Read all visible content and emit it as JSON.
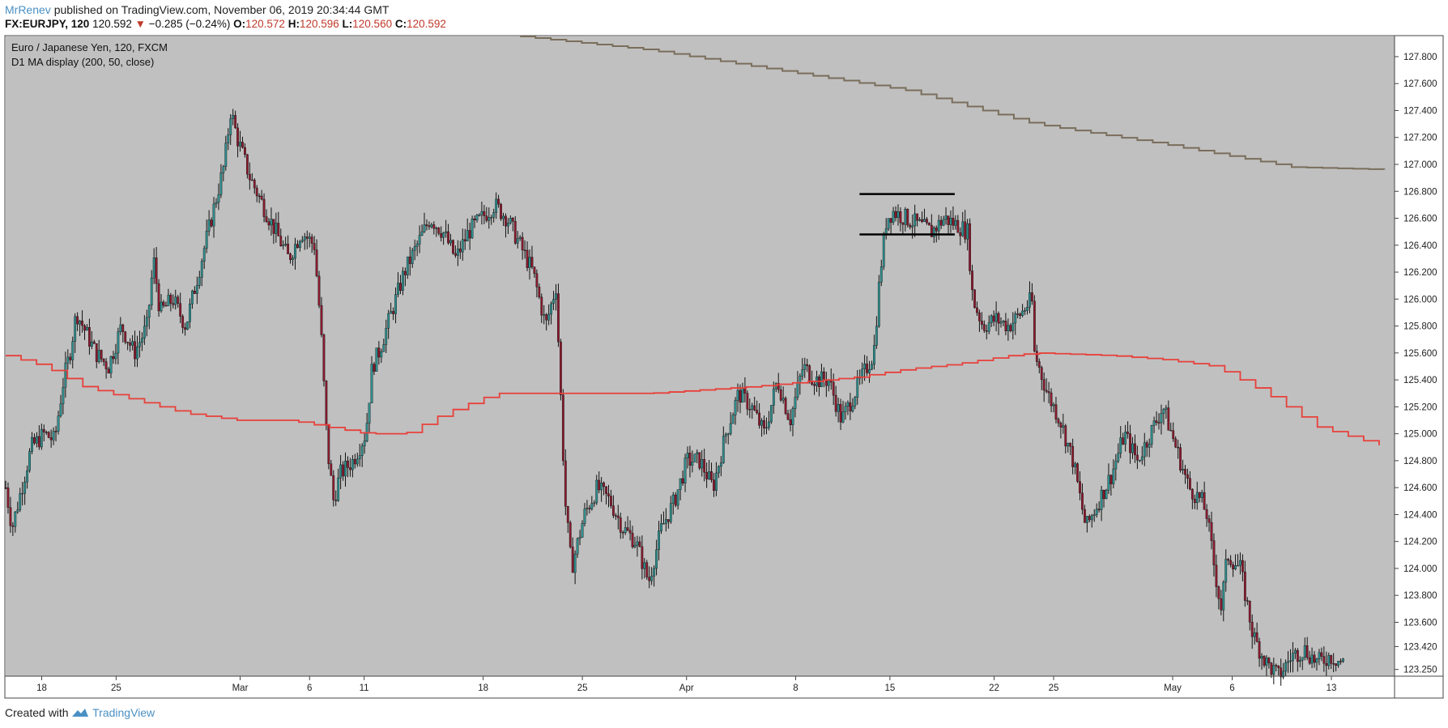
{
  "header": {
    "author": "MrRenev",
    "published": "published on TradingView.com, November 06, 2019 20:34:44 GMT",
    "symbol": "FX:EURJPY, 120",
    "last": "120.592",
    "down_arrow": "▼",
    "change": "−0.285 (−0.24%)",
    "o_label": "O:",
    "o_value": "120.572",
    "h_label": "H:",
    "h_value": "120.596",
    "l_label": "L:",
    "l_value": "120.560",
    "c_label": "C:",
    "c_value": "120.592"
  },
  "legend": {
    "title": "Euro / Japanese Yen, 120, FXCM",
    "indicator": "D1 MA display (200, 50, close)"
  },
  "footer": {
    "created_with": "Created with",
    "brand": "TradingView"
  },
  "colors": {
    "plot_bg": "#c0c0c0",
    "candle_up": "#2f8f8f",
    "candle_down": "#8b1a2e",
    "wick": "#111111",
    "ma200": "#7a6e5c",
    "ma50": "#e8403a",
    "brand": "#4a90c4",
    "down": "#c0392b"
  },
  "chart_data": {
    "type": "candlestick",
    "title": "Euro / Japanese Yen, 120, FXCM",
    "y_range": [
      123.2,
      127.95
    ],
    "y_ticks": [
      "127.800",
      "127.600",
      "127.400",
      "127.200",
      "127.000",
      "126.800",
      "126.600",
      "126.400",
      "126.200",
      "126.000",
      "125.800",
      "125.600",
      "125.400",
      "125.200",
      "125.000",
      "124.800",
      "124.600",
      "124.400",
      "124.200",
      "124.000",
      "123.800",
      "123.600",
      "123.420",
      "123.250"
    ],
    "x_ticks": [
      "18",
      "25",
      "Mar",
      "6",
      "11",
      "18",
      "25",
      "Apr",
      "8",
      "15",
      "22",
      "25",
      "May",
      "6",
      "13"
    ],
    "price_path": [
      [
        0,
        124.6
      ],
      [
        0.5,
        124.3
      ],
      [
        2,
        124.9
      ],
      [
        3,
        125.0
      ],
      [
        3.8,
        124.95
      ],
      [
        4.5,
        125.4
      ],
      [
        5,
        125.6
      ],
      [
        5.5,
        125.9
      ],
      [
        6,
        125.8
      ],
      [
        7,
        125.6
      ],
      [
        8,
        125.5
      ],
      [
        9,
        125.8
      ],
      [
        10,
        125.6
      ],
      [
        11,
        125.8
      ],
      [
        11.5,
        126.3
      ],
      [
        12,
        125.9
      ],
      [
        13,
        126.0
      ],
      [
        14,
        125.8
      ],
      [
        15,
        126.2
      ],
      [
        16,
        126.6
      ],
      [
        17,
        127.0
      ],
      [
        17.5,
        127.4
      ],
      [
        18,
        127.2
      ],
      [
        19,
        126.9
      ],
      [
        20,
        126.7
      ],
      [
        21,
        126.5
      ],
      [
        22,
        126.3
      ],
      [
        23,
        126.5
      ],
      [
        24,
        126.4
      ],
      [
        24.5,
        125.8
      ],
      [
        25,
        124.9
      ],
      [
        25.5,
        124.5
      ],
      [
        26,
        124.7
      ],
      [
        27,
        124.8
      ],
      [
        28,
        125.0
      ],
      [
        28.5,
        125.5
      ],
      [
        29,
        125.6
      ],
      [
        30,
        125.9
      ],
      [
        31,
        126.2
      ],
      [
        32,
        126.4
      ],
      [
        33,
        126.6
      ],
      [
        34,
        126.5
      ],
      [
        35,
        126.3
      ],
      [
        36,
        126.5
      ],
      [
        37,
        126.6
      ],
      [
        38,
        126.7
      ],
      [
        39,
        126.6
      ],
      [
        40,
        126.4
      ],
      [
        41,
        126.2
      ],
      [
        42,
        125.8
      ],
      [
        42.8,
        126.1
      ],
      [
        43.5,
        124.5
      ],
      [
        44,
        124.0
      ],
      [
        45,
        124.4
      ],
      [
        46,
        124.6
      ],
      [
        47,
        124.5
      ],
      [
        48,
        124.3
      ],
      [
        49,
        124.2
      ],
      [
        50,
        123.9
      ],
      [
        51,
        124.3
      ],
      [
        52,
        124.5
      ],
      [
        53,
        124.8
      ],
      [
        54,
        124.8
      ],
      [
        55,
        124.6
      ],
      [
        56,
        125.0
      ],
      [
        57,
        125.3
      ],
      [
        58,
        125.2
      ],
      [
        59,
        125.0
      ],
      [
        60,
        125.4
      ],
      [
        61,
        125.1
      ],
      [
        62,
        125.5
      ],
      [
        63,
        125.4
      ],
      [
        64,
        125.4
      ],
      [
        65,
        125.1
      ],
      [
        66,
        125.3
      ],
      [
        67,
        125.5
      ],
      [
        67.5,
        125.6
      ],
      [
        68,
        126.2
      ],
      [
        68.5,
        126.6
      ],
      [
        69,
        126.65
      ],
      [
        70,
        126.6
      ],
      [
        71,
        126.55
      ],
      [
        72,
        126.5
      ],
      [
        73,
        126.6
      ],
      [
        74,
        126.55
      ],
      [
        74.8,
        126.5
      ],
      [
        75.2,
        126.0
      ],
      [
        76,
        125.8
      ],
      [
        77,
        125.85
      ],
      [
        78,
        125.8
      ],
      [
        79,
        125.9
      ],
      [
        79.8,
        126.0
      ],
      [
        80,
        125.6
      ],
      [
        81,
        125.3
      ],
      [
        82,
        125.1
      ],
      [
        83,
        124.8
      ],
      [
        84,
        124.3
      ],
      [
        85,
        124.5
      ],
      [
        86,
        124.7
      ],
      [
        87,
        125.0
      ],
      [
        88,
        124.8
      ],
      [
        89,
        125.0
      ],
      [
        90,
        125.2
      ],
      [
        91,
        124.9
      ],
      [
        92,
        124.6
      ],
      [
        93,
        124.5
      ],
      [
        93.4,
        124.4
      ],
      [
        94,
        124.0
      ],
      [
        94.5,
        123.7
      ],
      [
        95,
        124.1
      ],
      [
        96,
        124.0
      ],
      [
        97,
        123.5
      ],
      [
        98,
        123.3
      ],
      [
        99,
        123.2
      ],
      [
        100,
        123.35
      ],
      [
        101,
        123.4
      ],
      [
        102,
        123.3
      ],
      [
        103,
        123.35
      ],
      [
        104,
        123.3
      ]
    ],
    "ma200": [
      [
        40,
        127.95
      ],
      [
        50,
        127.85
      ],
      [
        60,
        127.7
      ],
      [
        70,
        127.55
      ],
      [
        80,
        127.3
      ],
      [
        90,
        127.15
      ],
      [
        100,
        126.98
      ],
      [
        108,
        126.96
      ]
    ],
    "ma50": [
      [
        0,
        125.58
      ],
      [
        3,
        125.5
      ],
      [
        6,
        125.35
      ],
      [
        10,
        125.25
      ],
      [
        14,
        125.15
      ],
      [
        18,
        125.1
      ],
      [
        22,
        125.1
      ],
      [
        25,
        125.05
      ],
      [
        28,
        125.0
      ],
      [
        31,
        125.0
      ],
      [
        34,
        125.15
      ],
      [
        38,
        125.3
      ],
      [
        42,
        125.3
      ],
      [
        50,
        125.3
      ],
      [
        58,
        125.35
      ],
      [
        66,
        125.42
      ],
      [
        70,
        125.48
      ],
      [
        74,
        125.52
      ],
      [
        78,
        125.58
      ],
      [
        80,
        125.6
      ],
      [
        86,
        125.58
      ],
      [
        90,
        125.55
      ],
      [
        94,
        125.5
      ],
      [
        98,
        125.3
      ],
      [
        102,
        125.05
      ],
      [
        108,
        124.88
      ]
    ],
    "drawings": {
      "range_top": {
        "x": [
          66.4,
          73.8
        ],
        "y": 126.78
      },
      "range_bottom": {
        "x": [
          66.4,
          73.8
        ],
        "y": 126.48
      }
    }
  }
}
